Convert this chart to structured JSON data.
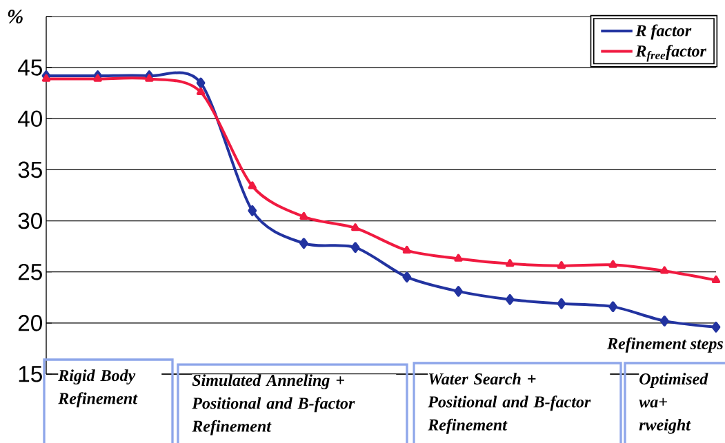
{
  "chart_data": {
    "type": "line",
    "categories": [
      null,
      null,
      null,
      null,
      null,
      null,
      null,
      null,
      null,
      null,
      null,
      null,
      null,
      null
    ],
    "series": [
      {
        "name": "*R factor*",
        "color": "#2233a0",
        "marker": "diamond",
        "values": [
          44.2,
          44.2,
          44.2,
          43.5,
          31.0,
          27.8,
          27.4,
          24.5,
          23.1,
          22.3,
          21.9,
          21.6,
          20.2,
          19.6
        ]
      },
      {
        "name": "*R$_{free}$factor*",
        "color": "#f01a40",
        "marker": "triangle",
        "values": [
          43.9,
          43.9,
          43.9,
          42.6,
          33.4,
          30.4,
          29.3,
          27.1,
          26.3,
          25.8,
          25.6,
          25.7,
          25.1,
          24.2
        ]
      }
    ],
    "xlabel": "*Refinement steps*",
    "ylabel": "%",
    "ylim": [
      15,
      50
    ],
    "yticks": [
      15,
      20,
      25,
      30,
      35,
      40,
      45,
      {
        "value": 50,
        "label": null
      }
    ],
    "grid": "y",
    "legend": "top right",
    "annotations": [
      "*Rigid Body Refinement*",
      "*Simulated Anneling + Positional and B-factor Refinement*",
      "*Water Search + Positional and B-factor Refinement*",
      "*Optimised wa+ rweight*"
    ]
  }
}
